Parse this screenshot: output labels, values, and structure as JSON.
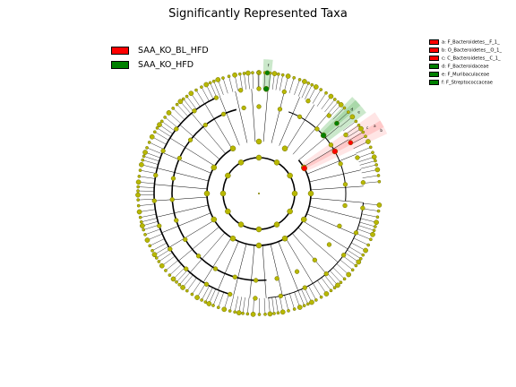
{
  "title": "Significantly Represented Taxa",
  "groups": [
    {
      "label": "SAA_KO_BL_HFD",
      "color": "#ff0000"
    },
    {
      "label": "SAA_KO_HFD",
      "color": "#008000"
    }
  ],
  "taxa_legend": [
    {
      "letter": "a",
      "label": "a: F_Bacteroidetes__F_1_",
      "color": "#ff0000"
    },
    {
      "letter": "b",
      "label": "b: O_Bacteroidetes__O_1_",
      "color": "#ff0000"
    },
    {
      "letter": "c",
      "label": "c: C_Bacteroidetes__C_1_",
      "color": "#ff0000"
    },
    {
      "letter": "d",
      "label": "d: F_Bacteroidaceae",
      "color": "#008000"
    },
    {
      "letter": "e",
      "label": "e: F_Muribaculaceae",
      "color": "#008000"
    },
    {
      "letter": "f",
      "label": "f: F_Streptococcaceae",
      "color": "#008000"
    }
  ],
  "colors": {
    "node_default": "#b8b800",
    "node_edge": "#6f6f00",
    "line": "#000000",
    "highlight_red": "#ff0000",
    "highlight_green": "#008000"
  }
}
